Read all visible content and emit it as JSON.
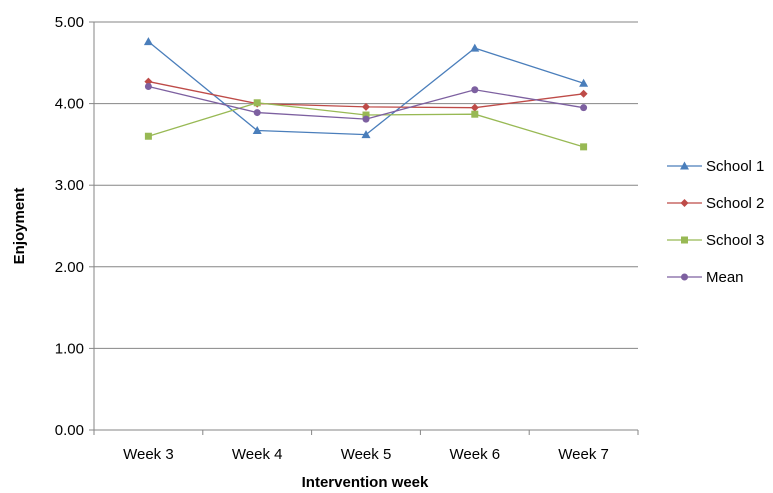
{
  "chart_data": {
    "type": "line",
    "title": "",
    "xlabel": "Intervention week",
    "ylabel": "Enjoyment",
    "categories": [
      "Week 3",
      "Week 4",
      "Week 5",
      "Week 6",
      "Week 7"
    ],
    "ylim": [
      0,
      5
    ],
    "yticks": [
      0,
      1,
      2,
      3,
      4,
      5
    ],
    "ytick_labels": [
      "0.00",
      "1.00",
      "2.00",
      "3.00",
      "4.00",
      "5.00"
    ],
    "grid": "horizontal",
    "legend_position": "right",
    "series": [
      {
        "name": "School 1",
        "values": [
          4.76,
          3.67,
          3.62,
          4.68,
          4.25
        ],
        "color": "#4a7ebb",
        "marker": "triangle"
      },
      {
        "name": "School 2",
        "values": [
          4.27,
          4.0,
          3.96,
          3.95,
          4.12
        ],
        "color": "#be4b48",
        "marker": "diamond"
      },
      {
        "name": "School 3",
        "values": [
          3.6,
          4.01,
          3.86,
          3.87,
          3.47
        ],
        "color": "#98b954",
        "marker": "square"
      },
      {
        "name": "Mean",
        "values": [
          4.21,
          3.89,
          3.81,
          4.17,
          3.95
        ],
        "color": "#7d60a0",
        "marker": "circle"
      }
    ]
  }
}
